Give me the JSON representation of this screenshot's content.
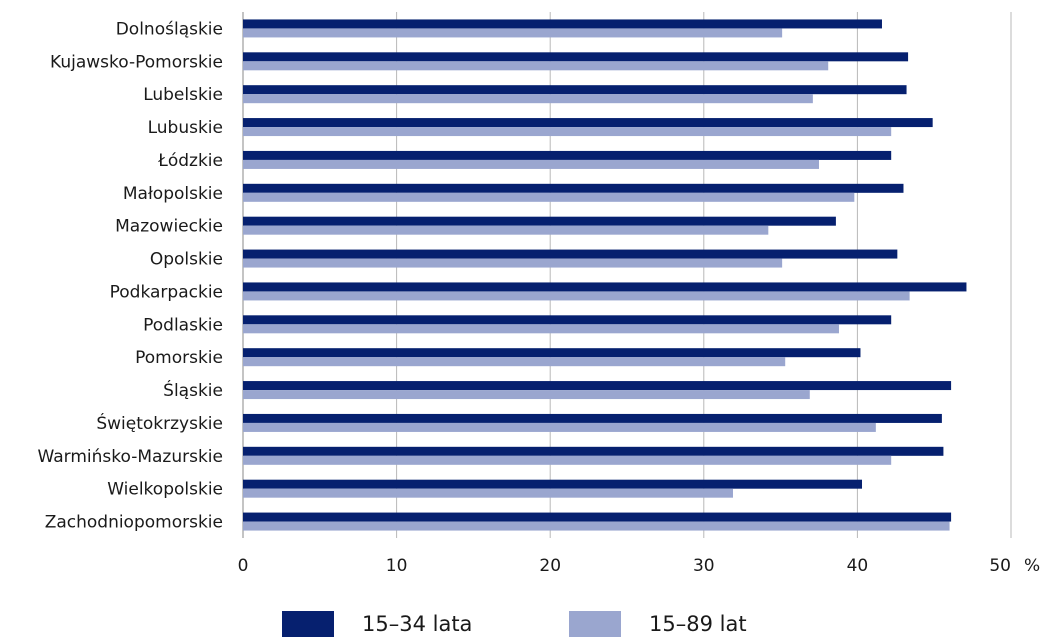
{
  "chart_data": {
    "type": "bar",
    "orientation": "horizontal",
    "categories": [
      "Dolnośląskie",
      "Kujawsko-Pomorskie",
      "Lubelskie",
      "Lubuskie",
      "Łódzkie",
      "Małopolskie",
      "Mazowieckie",
      "Opolskie",
      "Podkarpackie",
      "Podlaskie",
      "Pomorskie",
      "Śląskie",
      "Świętokrzyskie",
      "Warmińsko-Mazurskie",
      "Wielkopolskie",
      "Zachodniopomorskie"
    ],
    "series": [
      {
        "name": "15–34 lata",
        "color": "#06206f",
        "values": [
          41.6,
          43.3,
          43.2,
          44.9,
          42.2,
          43.0,
          38.6,
          42.6,
          47.1,
          42.2,
          40.2,
          46.1,
          45.5,
          45.6,
          40.3,
          46.1
        ]
      },
      {
        "name": "15–89 lat",
        "color": "#9aa6cf",
        "values": [
          35.1,
          38.1,
          37.1,
          42.2,
          37.5,
          39.8,
          34.2,
          35.1,
          43.4,
          38.8,
          35.3,
          36.9,
          41.2,
          42.2,
          31.9,
          46.0
        ]
      }
    ],
    "xlim": [
      0,
      50
    ],
    "xticks": [
      "0",
      "10",
      "20",
      "30",
      "40",
      "50"
    ],
    "unit": "%",
    "grid": "vertical",
    "legend_position": "bottom"
  }
}
